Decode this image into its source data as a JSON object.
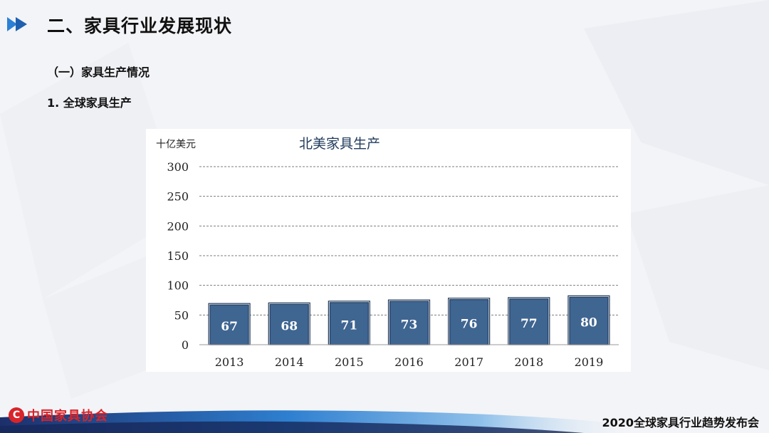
{
  "slide": {
    "title": "二、家具行业发展现状",
    "section": "（一）家具生产情况",
    "subsection": "1. 全球家具生产"
  },
  "footer": {
    "org_logo_text": "中国家具协会",
    "event_title": "2020全球家具行业趋势发布会"
  },
  "colors": {
    "accent_blue": "#2c7fd6",
    "bar_fill": "#3f6591",
    "bar_border": "#1f3a5c",
    "logo_red": "#d8242a"
  },
  "chart_data": {
    "type": "bar",
    "title": "北美家具生产",
    "ylabel": "十亿美元",
    "xlabel": "",
    "categories": [
      "2013",
      "2014",
      "2015",
      "2016",
      "2017",
      "2018",
      "2019"
    ],
    "values": [
      67,
      68,
      71,
      73,
      76,
      77,
      80
    ],
    "data_labels": [
      "67",
      "68",
      "71",
      "73",
      "76",
      "77",
      "80"
    ],
    "ylim": [
      0,
      300
    ],
    "yticks": [
      0,
      50,
      100,
      150,
      200,
      250,
      300
    ],
    "ytick_labels": [
      "0",
      "50",
      "100",
      "150",
      "200",
      "250",
      "300"
    ],
    "grid": true,
    "legend": "none"
  }
}
